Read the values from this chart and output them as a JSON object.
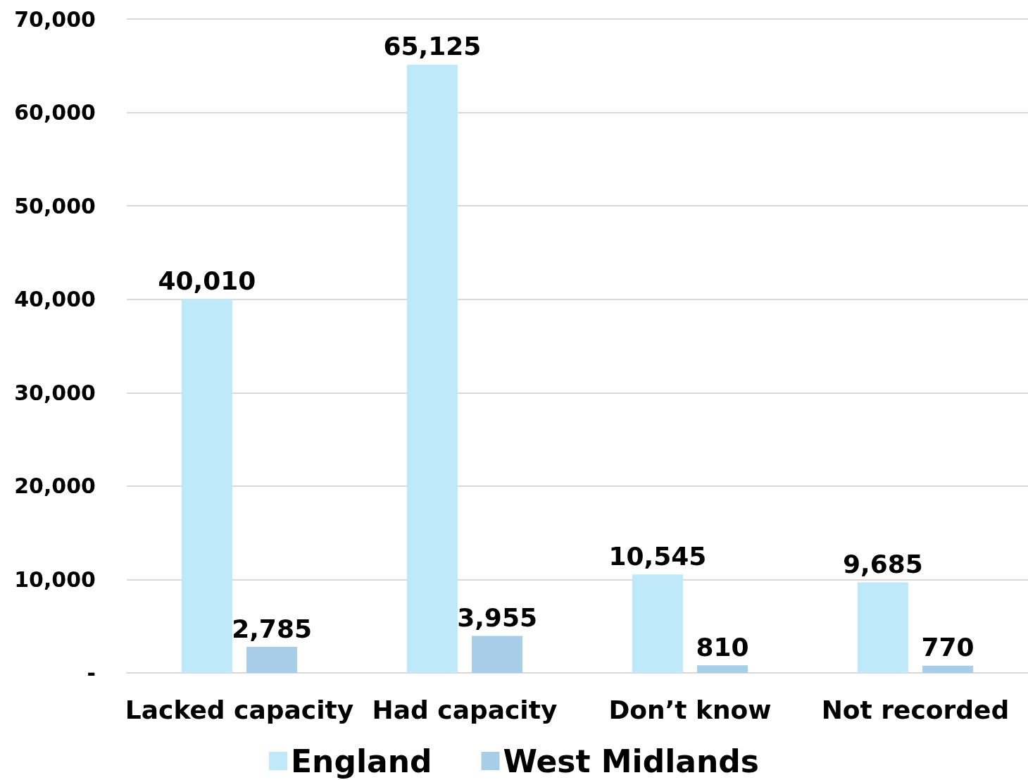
{
  "chart_data": {
    "type": "bar",
    "categories": [
      "Lacked capacity",
      "Had capacity",
      "Don’t know",
      "Not recorded"
    ],
    "series": [
      {
        "name": "England",
        "color": "#bfe8f8",
        "values": [
          40010,
          65125,
          10545,
          9685
        ],
        "value_labels": [
          "40,010",
          "65,125",
          "10,545",
          "9,685"
        ]
      },
      {
        "name": "West Midlands",
        "color": "#a7cde8",
        "values": [
          2785,
          3955,
          810,
          770
        ],
        "value_labels": [
          "2,785",
          "3,955",
          "810",
          "770"
        ]
      }
    ],
    "ylim": [
      0,
      70000
    ],
    "yticks": [
      {
        "value": 0,
        "label": "-"
      },
      {
        "value": 10000,
        "label": "10,000"
      },
      {
        "value": 20000,
        "label": "20,000"
      },
      {
        "value": 30000,
        "label": "30,000"
      },
      {
        "value": 40000,
        "label": "40,000"
      },
      {
        "value": 50000,
        "label": "50,000"
      },
      {
        "value": 60000,
        "label": "60,000"
      },
      {
        "value": 70000,
        "label": "70,000"
      }
    ],
    "grid": "y",
    "legend": "bottom"
  }
}
